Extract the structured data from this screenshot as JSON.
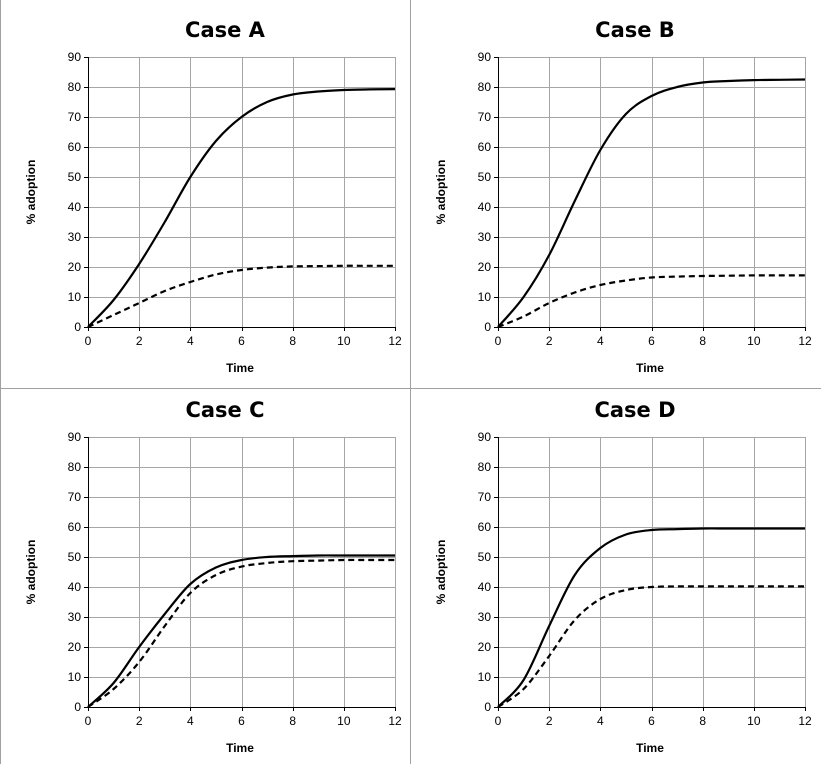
{
  "chart_data": [
    {
      "type": "line",
      "title": "Case A",
      "xlabel": "Time",
      "ylabel": "% adoption",
      "xlim": [
        0,
        12
      ],
      "ylim": [
        0,
        90
      ],
      "xticks": [
        0,
        2,
        4,
        6,
        8,
        10,
        12
      ],
      "yticks": [
        0,
        10,
        20,
        30,
        40,
        50,
        60,
        70,
        80,
        90
      ],
      "grid": true,
      "x": [
        0,
        1,
        2,
        3,
        4,
        5,
        6,
        7,
        8,
        9,
        10,
        11,
        12
      ],
      "series": [
        {
          "style": "solid",
          "values": [
            0,
            9,
            21,
            35,
            50,
            62,
            70,
            75,
            77.5,
            78.5,
            79,
            79.2,
            79.3
          ]
        },
        {
          "style": "dashed",
          "values": [
            0,
            4,
            8,
            12,
            15,
            17.5,
            19,
            19.8,
            20.2,
            20.3,
            20.4,
            20.4,
            20.4
          ]
        }
      ]
    },
    {
      "type": "line",
      "title": "Case B",
      "xlabel": "Time",
      "ylabel": "% adoption",
      "xlim": [
        0,
        12
      ],
      "ylim": [
        0,
        90
      ],
      "xticks": [
        0,
        2,
        4,
        6,
        8,
        10,
        12
      ],
      "yticks": [
        0,
        10,
        20,
        30,
        40,
        50,
        60,
        70,
        80,
        90
      ],
      "grid": true,
      "x": [
        0,
        1,
        2,
        3,
        4,
        5,
        6,
        7,
        8,
        9,
        10,
        11,
        12
      ],
      "series": [
        {
          "style": "solid",
          "values": [
            0,
            10,
            24,
            42,
            59,
            71,
            77,
            80,
            81.5,
            82,
            82.3,
            82.4,
            82.5
          ]
        },
        {
          "style": "dashed",
          "values": [
            0,
            3.5,
            8,
            11.5,
            14,
            15.5,
            16.5,
            16.8,
            17,
            17.1,
            17.2,
            17.2,
            17.2
          ]
        }
      ]
    },
    {
      "type": "line",
      "title": "Case C",
      "xlabel": "Time",
      "ylabel": "% adoption",
      "xlim": [
        0,
        12
      ],
      "ylim": [
        0,
        90
      ],
      "xticks": [
        0,
        2,
        4,
        6,
        8,
        10,
        12
      ],
      "yticks": [
        0,
        10,
        20,
        30,
        40,
        50,
        60,
        70,
        80,
        90
      ],
      "grid": true,
      "x": [
        0,
        1,
        2,
        3,
        4,
        5,
        6,
        7,
        8,
        9,
        10,
        11,
        12
      ],
      "series": [
        {
          "style": "solid",
          "values": [
            0,
            8,
            20,
            31,
            41,
            46.5,
            49,
            50,
            50.3,
            50.5,
            50.5,
            50.5,
            50.5
          ]
        },
        {
          "style": "dashed",
          "values": [
            0,
            6,
            15,
            27,
            38,
            44,
            46.8,
            48,
            48.6,
            48.8,
            49,
            49,
            49
          ]
        }
      ]
    },
    {
      "type": "line",
      "title": "Case D",
      "xlabel": "Time",
      "ylabel": "% adoption",
      "xlim": [
        0,
        12
      ],
      "ylim": [
        0,
        90
      ],
      "xticks": [
        0,
        2,
        4,
        6,
        8,
        10,
        12
      ],
      "yticks": [
        0,
        10,
        20,
        30,
        40,
        50,
        60,
        70,
        80,
        90
      ],
      "grid": true,
      "x": [
        0,
        1,
        2,
        3,
        4,
        5,
        6,
        7,
        8,
        9,
        10,
        11,
        12
      ],
      "series": [
        {
          "style": "solid",
          "values": [
            0,
            9,
            27,
            44,
            53,
            57.5,
            59,
            59.3,
            59.5,
            59.5,
            59.5,
            59.5,
            59.5
          ]
        },
        {
          "style": "dashed",
          "values": [
            0,
            6,
            17,
            29,
            36,
            39,
            40,
            40.2,
            40.2,
            40.2,
            40.2,
            40.2,
            40.2
          ]
        }
      ]
    }
  ]
}
